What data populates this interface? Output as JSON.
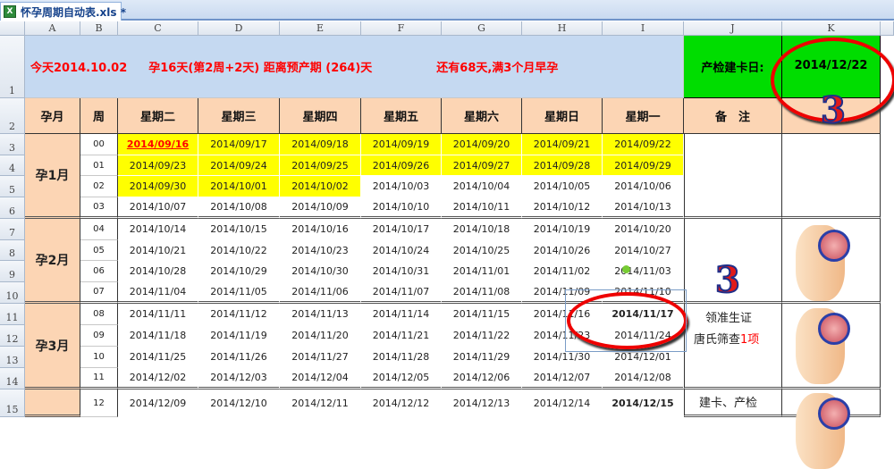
{
  "window": {
    "tab_title": "怀孕周期自动表.xls *",
    "icon": "excel-file-icon"
  },
  "columns": [
    "A",
    "B",
    "C",
    "D",
    "E",
    "F",
    "G",
    "H",
    "I",
    "J",
    "K"
  ],
  "rows": [
    "1",
    "2",
    "3",
    "4",
    "5",
    "6",
    "7",
    "8",
    "9",
    "10",
    "11",
    "12",
    "13",
    "14",
    "15"
  ],
  "banner": {
    "today": "今天2014.10.02",
    "pregnant": "孕16天(第2周+2天) 距离预产期 (264)天",
    "remaining": "还有68天,满3个月早孕",
    "card_label": "产检建卡日:",
    "card_date": "2014/12/22"
  },
  "headers": {
    "month": "孕月",
    "week": "周",
    "days": [
      "星期二",
      "星期三",
      "星期四",
      "星期五",
      "星期六",
      "星期日",
      "星期一"
    ],
    "notes": "备　注"
  },
  "months": [
    "孕1月",
    "孕2月",
    "孕3月"
  ],
  "weeks": [
    "00",
    "01",
    "02",
    "03",
    "04",
    "05",
    "06",
    "07",
    "08",
    "09",
    "10",
    "11",
    "12"
  ],
  "dates": [
    [
      "2014/09/16",
      "2014/09/17",
      "2014/09/18",
      "2014/09/19",
      "2014/09/20",
      "2014/09/21",
      "2014/09/22"
    ],
    [
      "2014/09/23",
      "2014/09/24",
      "2014/09/25",
      "2014/09/26",
      "2014/09/27",
      "2014/09/28",
      "2014/09/29"
    ],
    [
      "2014/09/30",
      "2014/10/01",
      "2014/10/02",
      "2014/10/03",
      "2014/10/04",
      "2014/10/05",
      "2014/10/06"
    ],
    [
      "2014/10/07",
      "2014/10/08",
      "2014/10/09",
      "2014/10/10",
      "2014/10/11",
      "2014/10/12",
      "2014/10/13"
    ],
    [
      "2014/10/14",
      "2014/10/15",
      "2014/10/16",
      "2014/10/17",
      "2014/10/18",
      "2014/10/19",
      "2014/10/20"
    ],
    [
      "2014/10/21",
      "2014/10/22",
      "2014/10/23",
      "2014/10/24",
      "2014/10/25",
      "2014/10/26",
      "2014/10/27"
    ],
    [
      "2014/10/28",
      "2014/10/29",
      "2014/10/30",
      "2014/10/31",
      "2014/11/01",
      "2014/11/02",
      "2014/11/03"
    ],
    [
      "2014/11/04",
      "2014/11/05",
      "2014/11/06",
      "2014/11/07",
      "2014/11/08",
      "2014/11/09",
      "2014/11/10"
    ],
    [
      "2014/11/11",
      "2014/11/12",
      "2014/11/13",
      "2014/11/14",
      "2014/11/15",
      "2014/11/16",
      "2014/11/17"
    ],
    [
      "2014/11/18",
      "2014/11/19",
      "2014/11/20",
      "2014/11/21",
      "2014/11/22",
      "2014/11/23",
      "2014/11/24"
    ],
    [
      "2014/11/25",
      "2014/11/26",
      "2014/11/27",
      "2014/11/28",
      "2014/11/29",
      "2014/11/30",
      "2014/12/01"
    ],
    [
      "2014/12/02",
      "2014/12/03",
      "2014/12/04",
      "2014/12/05",
      "2014/12/06",
      "2014/12/07",
      "2014/12/08"
    ],
    [
      "2014/12/09",
      "2014/12/10",
      "2014/12/11",
      "2014/12/12",
      "2014/12/13",
      "2014/12/14",
      "2014/12/15"
    ]
  ],
  "notes": {
    "line1": "领准生证",
    "line2": "唐氏筛查",
    "line2_red": "1项",
    "line3": "建卡、产检"
  },
  "annotations": {
    "number": "3"
  },
  "colors": {
    "banner": "#c5d9f1",
    "header": "#fcd5b4",
    "highlight": "#ffff00",
    "green": "#00dd00",
    "red": "#ff0000"
  }
}
